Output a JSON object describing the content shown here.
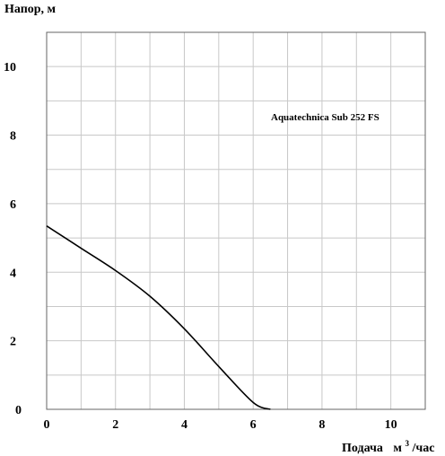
{
  "chart_data": {
    "type": "line",
    "title": "",
    "ylabel": "Напор, м",
    "xlabel_main": "Подача",
    "xlabel_unit_prefix": "м",
    "xlabel_unit_sup": "3",
    "xlabel_unit_suffix": "/час",
    "xlim": [
      0,
      11
    ],
    "ylim": [
      0,
      11
    ],
    "x_ticks": [
      0,
      2,
      4,
      6,
      8,
      10
    ],
    "y_ticks": [
      0,
      2,
      4,
      6,
      8,
      10
    ],
    "grid": true,
    "grid_step": 1,
    "series": [
      {
        "name": "Aquatechnica Sub 252 FS",
        "color": "#000000",
        "x": [
          0,
          1,
          2,
          3,
          4,
          5,
          6,
          6.5
        ],
        "y": [
          5.35,
          4.7,
          4.05,
          3.3,
          2.35,
          1.25,
          0.2,
          0
        ]
      }
    ]
  }
}
